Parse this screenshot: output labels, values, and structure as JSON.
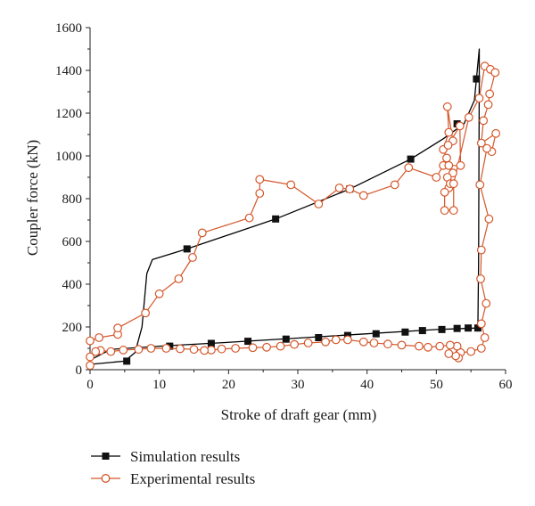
{
  "chart_data": {
    "type": "line",
    "title": "",
    "xlabel": "Stroke of draft gear (mm)",
    "ylabel": "Coupler force (kN)",
    "xlim": [
      0,
      60
    ],
    "ylim": [
      0,
      1600
    ],
    "xticks": [
      "0",
      "10",
      "20",
      "30",
      "40",
      "50",
      "60"
    ],
    "yticks": [
      "0",
      "200",
      "400",
      "600",
      "800",
      "1000",
      "1200",
      "1400",
      "1600"
    ],
    "grid": false,
    "legend_position": "bottom-left",
    "series": [
      {
        "name": "Simulation results",
        "color": "#000000",
        "marker": "filled-square",
        "line": [
          [
            0,
            25
          ],
          [
            5,
            40
          ],
          [
            6.5,
            80
          ],
          [
            7.5,
            200
          ],
          [
            8.2,
            450
          ],
          [
            9,
            515
          ],
          [
            14,
            565
          ],
          [
            26.8,
            705
          ],
          [
            37.5,
            845
          ],
          [
            46.3,
            985
          ],
          [
            51,
            1080
          ],
          [
            54,
            1150
          ],
          [
            55.5,
            1260
          ],
          [
            56.2,
            1500
          ],
          [
            56.2,
            1350
          ],
          [
            56.1,
            500
          ],
          [
            56.0,
            195
          ],
          [
            50,
            188
          ],
          [
            40,
            168
          ],
          [
            30,
            148
          ],
          [
            20,
            128
          ],
          [
            11,
            112
          ],
          [
            3,
            95
          ],
          [
            0,
            45
          ]
        ],
        "markers": [
          [
            5.3,
            40
          ],
          [
            14,
            565
          ],
          [
            26.8,
            705
          ],
          [
            37.5,
            845
          ],
          [
            46.3,
            985
          ],
          [
            53,
            1150
          ],
          [
            55.8,
            1360
          ],
          [
            56,
            195
          ],
          [
            54.6,
            195
          ],
          [
            53,
            193
          ],
          [
            50.8,
            188
          ],
          [
            48,
            183
          ],
          [
            45.5,
            176
          ],
          [
            41.3,
            168
          ],
          [
            37.2,
            160
          ],
          [
            33,
            150
          ],
          [
            28.3,
            143
          ],
          [
            22.8,
            133
          ],
          [
            17.5,
            123
          ],
          [
            11.5,
            110
          ]
        ]
      },
      {
        "name": "Experimental results",
        "color": "#d4572a",
        "marker": "open-circle",
        "points": [
          [
            0,
            135
          ],
          [
            1.3,
            150
          ],
          [
            4,
            165
          ],
          [
            4,
            195
          ],
          [
            8,
            265
          ],
          [
            10,
            355
          ],
          [
            12.8,
            425
          ],
          [
            14.8,
            525
          ],
          [
            16.2,
            640
          ],
          [
            23,
            710
          ],
          [
            24.5,
            825
          ],
          [
            24.5,
            890
          ],
          [
            29,
            865
          ],
          [
            33,
            775
          ],
          [
            36,
            850
          ],
          [
            37.5,
            845
          ],
          [
            39.5,
            815
          ],
          [
            44,
            865
          ],
          [
            46,
            945
          ],
          [
            50,
            900
          ],
          [
            51,
            955
          ],
          [
            51.5,
            990
          ],
          [
            51,
            1030
          ],
          [
            51.8,
            1110
          ],
          [
            51.6,
            1230
          ],
          [
            52.4,
            1070
          ],
          [
            51.7,
            1050
          ],
          [
            53.4,
            1140
          ],
          [
            53.5,
            955
          ],
          [
            51.8,
            955
          ],
          [
            52.4,
            920
          ],
          [
            51.6,
            900
          ],
          [
            51.8,
            850
          ],
          [
            52,
            870
          ],
          [
            51.2,
            830
          ],
          [
            51.2,
            745
          ],
          [
            52.5,
            745
          ],
          [
            52.5,
            870
          ],
          [
            54.7,
            1180
          ],
          [
            56.2,
            1270
          ],
          [
            57,
            1420
          ],
          [
            57.8,
            1405
          ],
          [
            58.5,
            1390
          ],
          [
            57.7,
            1290
          ],
          [
            57.5,
            1240
          ],
          [
            56.8,
            1165
          ],
          [
            56.5,
            1060
          ],
          [
            58.6,
            1105
          ],
          [
            58,
            1020
          ],
          [
            57.3,
            1035
          ],
          [
            56.3,
            865
          ],
          [
            57.6,
            705
          ],
          [
            56.5,
            560
          ],
          [
            56.4,
            425
          ],
          [
            57.2,
            310
          ],
          [
            56.5,
            215
          ],
          [
            57,
            150
          ],
          [
            56.5,
            100
          ],
          [
            55,
            85
          ],
          [
            53.5,
            80
          ],
          [
            53.2,
            55
          ],
          [
            52.8,
            65
          ],
          [
            52.4,
            95
          ],
          [
            51.8,
            75
          ],
          [
            53,
            110
          ],
          [
            52,
            115
          ],
          [
            50.5,
            110
          ],
          [
            48.8,
            105
          ],
          [
            47.5,
            110
          ],
          [
            45,
            115
          ],
          [
            43,
            120
          ],
          [
            41,
            125
          ],
          [
            39.5,
            130
          ],
          [
            37.2,
            140
          ],
          [
            35.5,
            140
          ],
          [
            34,
            130
          ],
          [
            31.5,
            125
          ],
          [
            29.5,
            118
          ],
          [
            27.5,
            110
          ],
          [
            25.5,
            105
          ],
          [
            23.5,
            103
          ],
          [
            21,
            100
          ],
          [
            19,
            97
          ],
          [
            17.5,
            92
          ],
          [
            16.5,
            90
          ],
          [
            15,
            95
          ],
          [
            13,
            98
          ],
          [
            11,
            100
          ],
          [
            8.8,
            100
          ],
          [
            7,
            95
          ],
          [
            4.8,
            92
          ],
          [
            3,
            85
          ],
          [
            1.5,
            90
          ],
          [
            0.8,
            85
          ],
          [
            0,
            60
          ],
          [
            0,
            20
          ]
        ]
      }
    ]
  }
}
